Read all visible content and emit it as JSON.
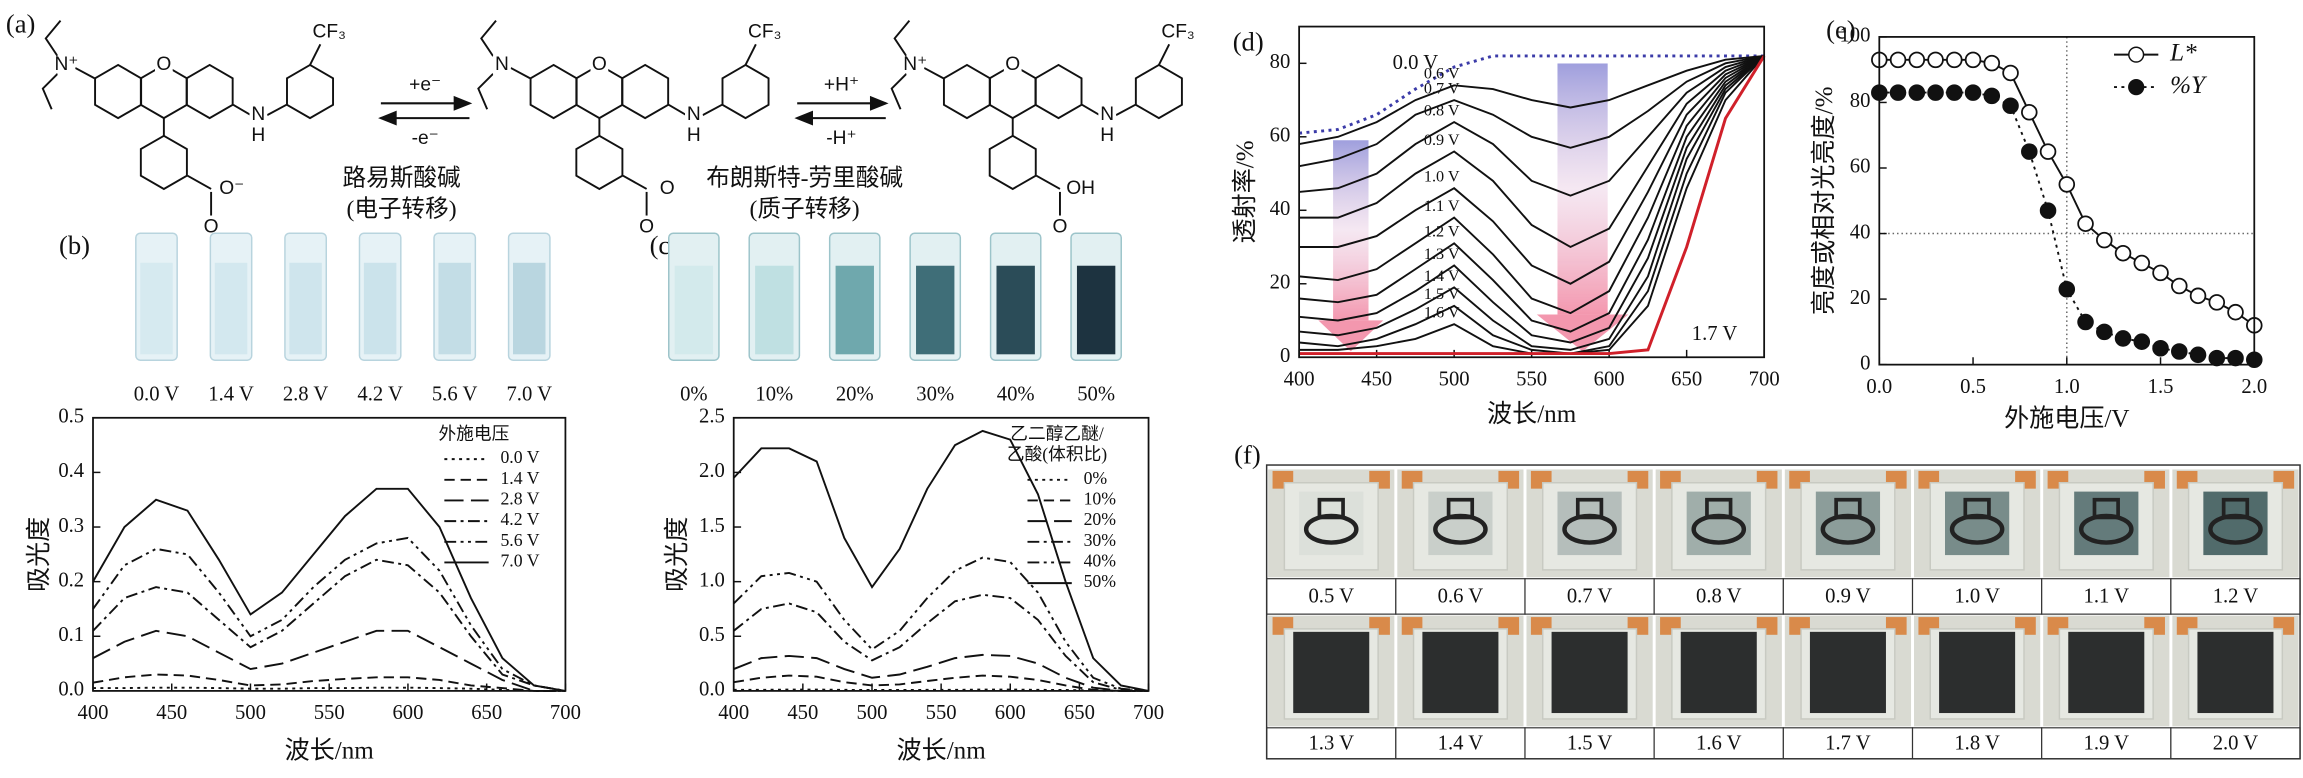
{
  "panel_labels": [
    "(a)",
    "(b)",
    "(c)",
    "(d)",
    "(e)",
    "(f)"
  ],
  "reaction": {
    "electron_forward": "+e⁻",
    "electron_back": "-e⁻",
    "lewis": "路易斯酸碱",
    "lewis_note": "(电子转移)",
    "proton_forward": "+H⁺",
    "proton_back": "-H⁺",
    "bronsted": "布朗斯特-劳里酸碱",
    "bronsted_note": "(质子转移)"
  },
  "molecules": [
    {
      "atoms": [
        "N⁺",
        "O",
        "N",
        "H",
        "CF₃",
        "O⁻",
        "O"
      ]
    },
    {
      "atoms": [
        "N",
        "O",
        "N",
        "H",
        "CF₃",
        "O",
        "O"
      ]
    },
    {
      "atoms": [
        "N⁺",
        "O",
        "N",
        "H",
        "CF₃",
        "OH",
        "O"
      ]
    }
  ],
  "b_cuvettes": [
    "0.0 V",
    "1.4 V",
    "2.8 V",
    "4.2 V",
    "5.6 V",
    "7.0 V"
  ],
  "c_cuvettes": [
    "0%",
    "10%",
    "20%",
    "30%",
    "40%",
    "50%"
  ],
  "f_labels": [
    "0.5 V",
    "0.6 V",
    "0.7 V",
    "0.8 V",
    "0.9 V",
    "1.0 V",
    "1.1 V",
    "1.2 V",
    "1.3 V",
    "1.4 V",
    "1.5 V",
    "1.6 V",
    "1.7 V",
    "1.8 V",
    "1.9 V",
    "2.0 V"
  ],
  "chart_data": [
    {
      "type": "line",
      "xlabel": "波长/nm",
      "ylabel": "吸光度",
      "xlim": [
        400,
        700
      ],
      "ylim": [
        0,
        0.5
      ],
      "xticks": [
        400,
        450,
        500,
        550,
        600,
        650,
        700
      ],
      "yticks": [
        {
          "value": 0,
          "label": "0.0"
        },
        0.1,
        0.2,
        0.3,
        0.4,
        0.5
      ],
      "legend": "upper right",
      "legend_title": [
        "外施电压"
      ],
      "x": [
        400,
        420,
        440,
        460,
        480,
        500,
        520,
        540,
        560,
        580,
        600,
        620,
        640,
        660,
        680,
        700
      ],
      "series": [
        {
          "name": "0.0 V",
          "color": "#111111",
          "line_style": "dotted",
          "values": [
            0.005,
            0.005,
            0.006,
            0.006,
            0.005,
            0.004,
            0.004,
            0.005,
            0.005,
            0.006,
            0.006,
            0.005,
            0.004,
            0.002,
            0,
            0
          ]
        },
        {
          "name": "1.4 V",
          "color": "#111111",
          "line_style": "dashed",
          "values": [
            0.015,
            0.025,
            0.03,
            0.028,
            0.02,
            0.01,
            0.012,
            0.018,
            0.022,
            0.025,
            0.025,
            0.02,
            0.01,
            0.005,
            0,
            0
          ]
        },
        {
          "name": "2.8 V",
          "color": "#111111",
          "line_style": "long-dashed",
          "values": [
            0.06,
            0.09,
            0.11,
            0.1,
            0.07,
            0.04,
            0.05,
            0.07,
            0.09,
            0.11,
            0.11,
            0.08,
            0.05,
            0.02,
            0,
            0
          ]
        },
        {
          "name": "4.2 V",
          "color": "#111111",
          "line_style": "dash-dot",
          "values": [
            0.11,
            0.17,
            0.19,
            0.18,
            0.13,
            0.08,
            0.11,
            0.16,
            0.21,
            0.24,
            0.23,
            0.18,
            0.1,
            0.03,
            0.01,
            0
          ]
        },
        {
          "name": "5.6 V",
          "color": "#111111",
          "line_style": "dash-dot-dot",
          "values": [
            0.15,
            0.23,
            0.26,
            0.25,
            0.18,
            0.1,
            0.13,
            0.19,
            0.24,
            0.27,
            0.28,
            0.22,
            0.12,
            0.04,
            0.01,
            0
          ]
        },
        {
          "name": "7.0 V",
          "color": "#111111",
          "line_style": "solid",
          "values": [
            0.2,
            0.3,
            0.35,
            0.33,
            0.24,
            0.14,
            0.18,
            0.25,
            0.32,
            0.37,
            0.37,
            0.3,
            0.17,
            0.06,
            0.01,
            0
          ]
        }
      ]
    },
    {
      "type": "line",
      "xlabel": "波长/nm",
      "ylabel": "吸光度",
      "xlim": [
        400,
        700
      ],
      "ylim": [
        0,
        2.5
      ],
      "xticks": [
        400,
        450,
        500,
        550,
        600,
        650,
        700
      ],
      "yticks": [
        {
          "value": 0,
          "label": "0.0"
        },
        0.5,
        {
          "value": 1,
          "label": "1.0"
        },
        1.5,
        {
          "value": 2,
          "label": "2.0"
        },
        2.5
      ],
      "legend": "upper right",
      "legend_title": [
        "乙二醇乙醚/",
        "乙酸(体积比)"
      ],
      "x": [
        400,
        420,
        440,
        460,
        480,
        500,
        520,
        540,
        560,
        580,
        600,
        620,
        640,
        660,
        680,
        700
      ],
      "series": [
        {
          "name": "0%",
          "color": "#111111",
          "line_style": "dotted",
          "values": [
            0.01,
            0.01,
            0.012,
            0.012,
            0.01,
            0.008,
            0.008,
            0.01,
            0.01,
            0.012,
            0.012,
            0.01,
            0.008,
            0.004,
            0,
            0
          ]
        },
        {
          "name": "10%",
          "color": "#111111",
          "line_style": "dashed",
          "values": [
            0.08,
            0.12,
            0.14,
            0.13,
            0.08,
            0.05,
            0.06,
            0.09,
            0.12,
            0.14,
            0.13,
            0.1,
            0.05,
            0.01,
            0,
            0
          ]
        },
        {
          "name": "20%",
          "color": "#111111",
          "line_style": "long-dashed",
          "values": [
            0.2,
            0.3,
            0.32,
            0.3,
            0.2,
            0.12,
            0.15,
            0.22,
            0.3,
            0.33,
            0.32,
            0.25,
            0.12,
            0.03,
            0,
            0
          ]
        },
        {
          "name": "30%",
          "color": "#111111",
          "line_style": "dash-dot",
          "values": [
            0.55,
            0.75,
            0.8,
            0.72,
            0.45,
            0.28,
            0.4,
            0.62,
            0.82,
            0.88,
            0.85,
            0.65,
            0.32,
            0.08,
            0.01,
            0
          ]
        },
        {
          "name": "40%",
          "color": "#111111",
          "line_style": "dash-dot-dot",
          "values": [
            0.8,
            1.05,
            1.08,
            1,
            0.65,
            0.38,
            0.55,
            0.85,
            1.1,
            1.22,
            1.18,
            0.9,
            0.45,
            0.12,
            0.02,
            0
          ]
        },
        {
          "name": "50%",
          "color": "#111111",
          "line_style": "solid",
          "values": [
            1.95,
            2.22,
            2.22,
            2.1,
            1.4,
            0.95,
            1.3,
            1.85,
            2.25,
            2.38,
            2.3,
            1.8,
            1,
            0.3,
            0.05,
            0
          ]
        }
      ]
    },
    {
      "type": "line",
      "xlabel": "波长/nm",
      "ylabel": "透射率/%",
      "xlim": [
        400,
        700
      ],
      "ylim": [
        0,
        90
      ],
      "xticks": [
        400,
        450,
        500,
        550,
        600,
        650,
        700
      ],
      "yticks": [
        0,
        20,
        40,
        60,
        80
      ],
      "labels": "inline",
      "x": [
        400,
        425,
        450,
        475,
        500,
        525,
        550,
        575,
        600,
        625,
        650,
        675,
        700
      ],
      "series": [
        {
          "name": "0.0 V",
          "color": "#3b3ba8",
          "line_style": "dotted",
          "values": [
            61,
            62,
            66,
            73,
            79,
            82,
            82,
            82,
            82,
            82,
            82,
            82,
            82
          ]
        },
        {
          "name": "0.6 V",
          "color": "#111111",
          "line_style": "solid",
          "values": [
            58,
            60,
            64,
            70,
            74,
            73,
            70,
            68,
            70,
            74,
            78,
            81,
            82
          ]
        },
        {
          "name": "0.7 V",
          "color": "#111111",
          "line_style": "solid",
          "values": [
            52,
            54,
            58,
            66,
            70,
            66,
            60,
            57,
            60,
            67,
            75,
            80,
            82
          ]
        },
        {
          "name": "0.8 V",
          "color": "#111111",
          "line_style": "solid",
          "values": [
            45,
            46,
            50,
            58,
            64,
            58,
            48,
            44,
            48,
            60,
            72,
            79,
            82
          ]
        },
        {
          "name": "0.9 V",
          "color": "#111111",
          "line_style": "solid",
          "values": [
            38,
            38,
            42,
            50,
            56,
            48,
            36,
            30,
            35,
            52,
            69,
            78,
            82
          ]
        },
        {
          "name": "1.0 V",
          "color": "#111111",
          "line_style": "solid",
          "values": [
            30,
            30,
            33,
            40,
            46,
            37,
            25,
            20,
            26,
            45,
            66,
            77,
            82
          ]
        },
        {
          "name": "1.1 V",
          "color": "#111111",
          "line_style": "solid",
          "values": [
            22,
            21,
            24,
            31,
            38,
            28,
            16,
            12,
            18,
            38,
            63,
            76,
            82
          ]
        },
        {
          "name": "1.2 V",
          "color": "#111111",
          "line_style": "solid",
          "values": [
            16,
            15,
            17,
            24,
            31,
            21,
            10,
            7,
            12,
            32,
            60,
            75,
            82
          ]
        },
        {
          "name": "1.3 V",
          "color": "#111111",
          "line_style": "solid",
          "values": [
            11,
            10,
            12,
            18,
            25,
            15,
            6,
            4,
            8,
            27,
            57,
            74,
            82
          ]
        },
        {
          "name": "1.4 V",
          "color": "#111111",
          "line_style": "solid",
          "values": [
            7,
            6,
            8,
            13,
            19,
            10,
            3,
            2,
            5,
            22,
            54,
            73,
            82
          ]
        },
        {
          "name": "1.5 V",
          "color": "#111111",
          "line_style": "solid",
          "values": [
            4,
            3,
            5,
            9,
            14,
            6,
            2,
            1,
            3,
            18,
            50,
            72,
            82
          ]
        },
        {
          "name": "1.6 V",
          "color": "#111111",
          "line_style": "solid",
          "values": [
            2,
            2,
            3,
            5,
            9,
            3,
            1,
            1,
            2,
            14,
            46,
            70,
            82
          ]
        },
        {
          "name": "1.7 V",
          "color": "#d0202a",
          "line_style": "solid",
          "values": [
            1,
            1,
            1,
            1,
            1,
            1,
            1,
            1,
            1,
            2,
            30,
            65,
            82
          ]
        }
      ]
    },
    {
      "type": "line",
      "xlabel": "外施电压/V",
      "ylabel": "亮度或相对光亮度/%",
      "xlim": [
        0,
        2
      ],
      "ylim": [
        0,
        100
      ],
      "xticks": [
        {
          "value": 0,
          "label": "0.0"
        },
        0.5,
        {
          "value": 1,
          "label": "1.0"
        },
        1.5,
        {
          "value": 2,
          "label": "2.0"
        }
      ],
      "yticks": [
        0,
        20,
        40,
        60,
        80,
        100
      ],
      "vlines": [
        1
      ],
      "hlines": [
        40
      ],
      "legend": "upper right",
      "x": [
        0,
        0.1,
        0.2,
        0.3,
        0.4,
        0.5,
        0.6,
        0.7,
        0.8,
        0.9,
        1,
        1.1,
        1.2,
        1.3,
        1.4,
        1.5,
        1.6,
        1.7,
        1.8,
        1.9,
        2
      ],
      "series": [
        {
          "name": "L*",
          "color": "#111111",
          "line_style": "solid",
          "marker": "open",
          "values": [
            93,
            93,
            93,
            93,
            93,
            93,
            92,
            89,
            77,
            65,
            55,
            43,
            38,
            34,
            31,
            28,
            24,
            21,
            19,
            16,
            12
          ]
        },
        {
          "name": "%Y",
          "color": "#111111",
          "line_style": "dotted",
          "marker": "filled",
          "values": [
            83,
            83,
            83,
            83,
            83,
            83,
            82,
            79,
            65,
            47,
            23,
            13,
            10,
            8,
            7,
            5,
            4,
            3,
            2,
            2,
            1.5
          ]
        }
      ]
    }
  ]
}
